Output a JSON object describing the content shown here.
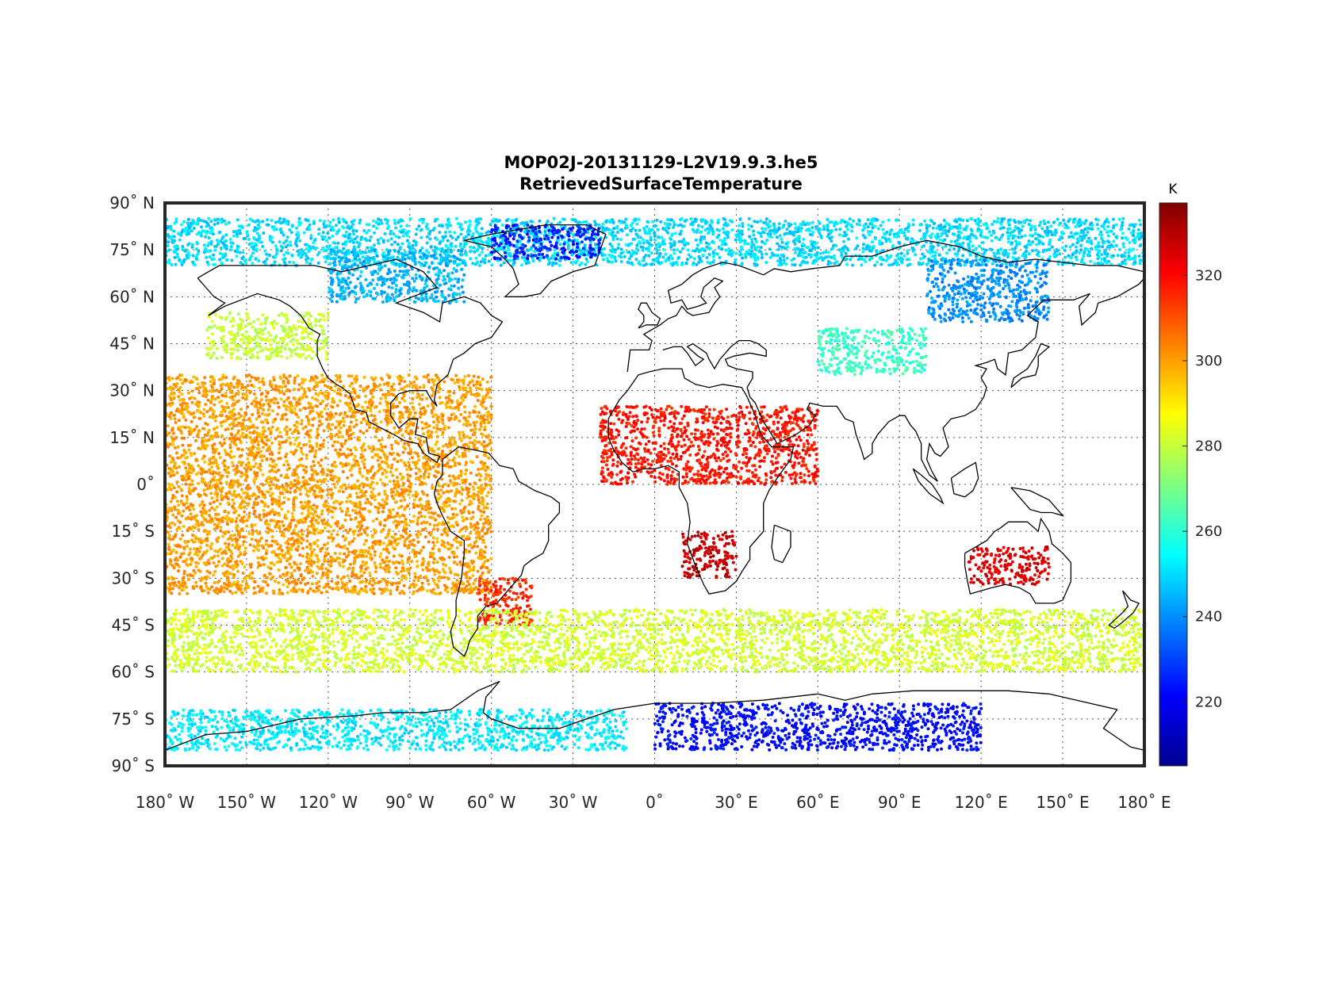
{
  "chart_data": {
    "type": "scatter",
    "title": "MOP02J-20131129-L2V19.9.3.he5",
    "subtitle": "RetrievedSurfaceTemperature",
    "xlabel": "",
    "ylabel": "",
    "xlim": [
      -180,
      180
    ],
    "ylim": [
      -90,
      90
    ],
    "grid": true,
    "projection": "equirectangular",
    "x_ticks": [
      {
        "value": -180,
        "label": "180˚ W"
      },
      {
        "value": -150,
        "label": "150˚ W"
      },
      {
        "value": -120,
        "label": "120˚ W"
      },
      {
        "value": -90,
        "label": "90˚ W"
      },
      {
        "value": -60,
        "label": "60˚ W"
      },
      {
        "value": -30,
        "label": "30˚ W"
      },
      {
        "value": 0,
        "label": "0˚"
      },
      {
        "value": 30,
        "label": "30˚ E"
      },
      {
        "value": 60,
        "label": "60˚ E"
      },
      {
        "value": 90,
        "label": "90˚ E"
      },
      {
        "value": 120,
        "label": "120˚ E"
      },
      {
        "value": 150,
        "label": "150˚ E"
      },
      {
        "value": 180,
        "label": "180˚ E"
      }
    ],
    "y_ticks": [
      {
        "value": 90,
        "label": "90˚ N"
      },
      {
        "value": 75,
        "label": "75˚ N"
      },
      {
        "value": 60,
        "label": "60˚ N"
      },
      {
        "value": 45,
        "label": "45˚ N"
      },
      {
        "value": 30,
        "label": "30˚ N"
      },
      {
        "value": 15,
        "label": "15˚ N"
      },
      {
        "value": 0,
        "label": "0˚"
      },
      {
        "value": -15,
        "label": "15˚ S"
      },
      {
        "value": -30,
        "label": "30˚ S"
      },
      {
        "value": -45,
        "label": "45˚ S"
      },
      {
        "value": -60,
        "label": "60˚ S"
      },
      {
        "value": -75,
        "label": "75˚ S"
      },
      {
        "value": -90,
        "label": "90˚ S"
      }
    ],
    "colorbar": {
      "label": "K",
      "colormap": "jet",
      "range": [
        205,
        337
      ],
      "ticks": [
        220,
        240,
        260,
        280,
        300,
        320
      ]
    },
    "regions": [
      {
        "lon": [
          -180,
          180
        ],
        "lat": [
          70,
          85
        ],
        "value": 250
      },
      {
        "lon": [
          -60,
          -20
        ],
        "lat": [
          72,
          83
        ],
        "value": 225
      },
      {
        "lon": [
          -120,
          -70
        ],
        "lat": [
          58,
          75
        ],
        "value": 245
      },
      {
        "lon": [
          100,
          145
        ],
        "lat": [
          52,
          72
        ],
        "value": 240
      },
      {
        "lon": [
          60,
          100
        ],
        "lat": [
          35,
          50
        ],
        "value": 262
      },
      {
        "lon": [
          -165,
          -120
        ],
        "lat": [
          40,
          55
        ],
        "value": 280
      },
      {
        "lon": [
          -180,
          -60
        ],
        "lat": [
          -35,
          35
        ],
        "value": 300
      },
      {
        "lon": [
          -20,
          60
        ],
        "lat": [
          0,
          25
        ],
        "value": 318
      },
      {
        "lon": [
          10,
          30
        ],
        "lat": [
          -30,
          -15
        ],
        "value": 328
      },
      {
        "lon": [
          115,
          145
        ],
        "lat": [
          -32,
          -20
        ],
        "value": 325
      },
      {
        "lon": [
          -65,
          -45
        ],
        "lat": [
          -45,
          -30
        ],
        "value": 315
      },
      {
        "lon": [
          -180,
          180
        ],
        "lat": [
          -60,
          -40
        ],
        "value": 282
      },
      {
        "lon": [
          0,
          120
        ],
        "lat": [
          -85,
          -70
        ],
        "value": 222
      },
      {
        "lon": [
          -180,
          -10
        ],
        "lat": [
          -85,
          -72
        ],
        "value": 252
      }
    ]
  }
}
